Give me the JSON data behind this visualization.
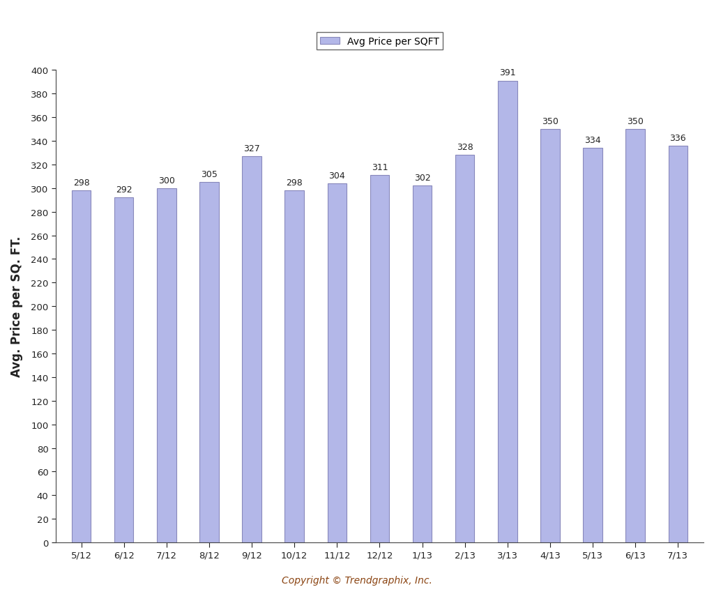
{
  "categories": [
    "5/12",
    "6/12",
    "7/12",
    "8/12",
    "9/12",
    "10/12",
    "11/12",
    "12/12",
    "1/13",
    "2/13",
    "3/13",
    "4/13",
    "5/13",
    "6/13",
    "7/13"
  ],
  "values": [
    298,
    292,
    300,
    305,
    327,
    298,
    304,
    311,
    302,
    328,
    391,
    350,
    334,
    350,
    336
  ],
  "bar_color": "#b3b7e8",
  "bar_edge_color": "#8888bb",
  "ylabel": "Avg. Price per SQ. FT.",
  "legend_label": "Avg Price per SQFT",
  "ylim": [
    0,
    400
  ],
  "ytick_step": 20,
  "copyright_text": "Copyright © Trendgraphix, Inc.",
  "background_color": "#ffffff",
  "bar_width": 0.45,
  "label_fontsize": 9,
  "ylabel_fontsize": 12,
  "xlabel_fontsize": 9.5,
  "tick_fontsize": 9.5,
  "copyright_fontsize": 10,
  "legend_fontsize": 10
}
